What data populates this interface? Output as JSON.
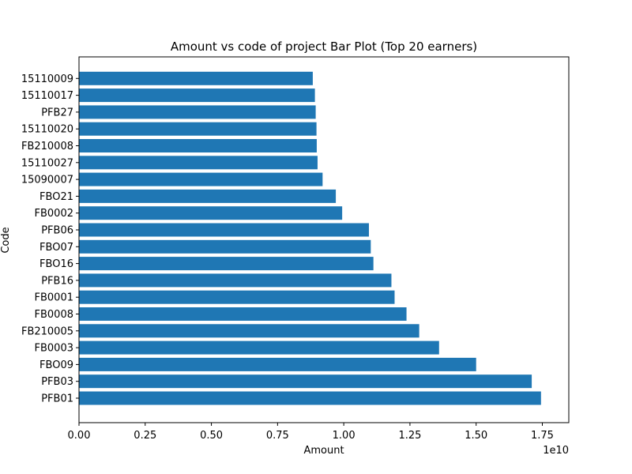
{
  "chart_data": {
    "type": "bar",
    "orientation": "horizontal",
    "title": "Amount vs code of project Bar Plot (Top 20 earners)",
    "xlabel": "Amount",
    "ylabel": "Code",
    "x_offset_label": "1e10",
    "x_scale": 10000000000,
    "xlim": [
      0,
      1.85
    ],
    "x_ticks": [
      0.0,
      0.25,
      0.5,
      0.75,
      1.0,
      1.25,
      1.5,
      1.75
    ],
    "x_tick_labels": [
      "0.00",
      "0.25",
      "0.50",
      "0.75",
      "1.00",
      "1.25",
      "1.50",
      "1.75"
    ],
    "grid": false,
    "bar_color": "#1f77b4",
    "categories": [
      "PFB01",
      "PFB03",
      "FBO09",
      "FB0003",
      "FB210005",
      "FB0008",
      "FB0001",
      "PFB16",
      "FBO16",
      "FBO07",
      "PFB06",
      "FB0002",
      "FBO21",
      "15090007",
      "15110027",
      "FB210008",
      "15110020",
      "PFB27",
      "15110017",
      "15110009"
    ],
    "values": [
      1.745,
      1.71,
      1.5,
      1.36,
      1.285,
      1.237,
      1.192,
      1.18,
      1.112,
      1.102,
      1.095,
      0.994,
      0.97,
      0.92,
      0.901,
      0.898,
      0.897,
      0.894,
      0.891,
      0.883
    ]
  }
}
